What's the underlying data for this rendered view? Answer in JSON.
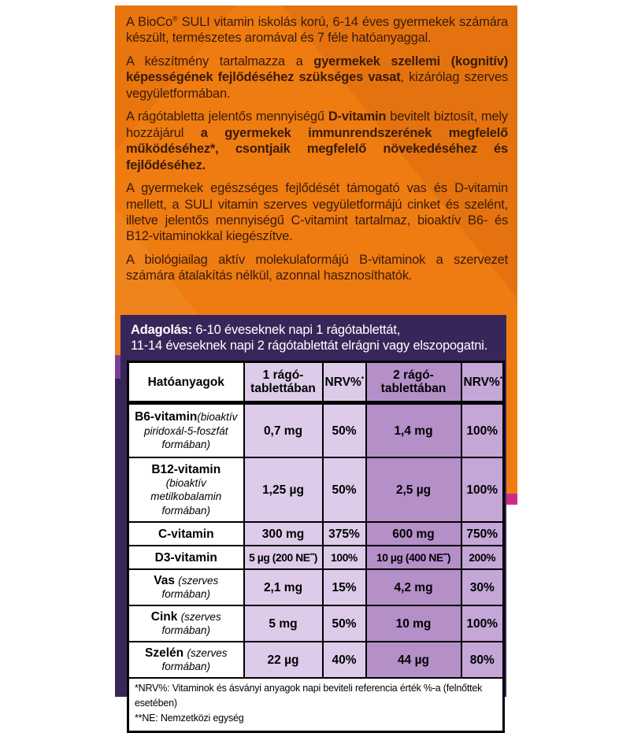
{
  "label": {
    "colors": {
      "orange": "#ef7c11",
      "panelPurple": "#38265a",
      "lilac": "#ddcbe9",
      "midPurple": "#b48fc8",
      "lightPurple": "#c4a6d7",
      "accentPurple": "#7b3f9a",
      "accentMagenta": "#cd2c86",
      "introText": "#3a1b07"
    },
    "intro": {
      "paragraphs": [
        {
          "segments": [
            {
              "text": "A BioCo^®^ SULI vitamin iskolás korú, 6-14 éves gyermekek számára készült, természetes aromával és 7 féle hatóanyaggal.",
              "bold": false
            }
          ]
        },
        {
          "segments": [
            {
              "text": "A készítmény tartalmazza a ",
              "bold": false
            },
            {
              "text": "gyermekek szellemi (kognitív) képességének fejlődéséhez szükséges vasat",
              "bold": true
            },
            {
              "text": ", kizárólag szerves vegyületformában.",
              "bold": false
            }
          ]
        },
        {
          "segments": [
            {
              "text": "A rágótabletta jelentős mennyiségű ",
              "bold": false
            },
            {
              "text": "D-vitamin",
              "bold": true
            },
            {
              "text": " bevitelt biztosít, mely hozzájárul ",
              "bold": false
            },
            {
              "text": "a gyermekek immunrendszerének megfelelő működéséhez*, csontjaik megfelelő növekedéséhez és fejlődéséhez.",
              "bold": true
            }
          ]
        },
        {
          "segments": [
            {
              "text": "A gyermekek egészséges fejlődését támogató vas és D-vitamin mellett, a SULI vitamin szerves vegyületformájú cinket és szelént, illetve jelentős mennyiségű C-vitamint tartalmaz, bioaktív B6- és B12-vitaminokkal kiegészítve.",
              "bold": false
            }
          ]
        },
        {
          "segments": [
            {
              "text": "A biológiailag aktív molekulaformájú B-vitaminok a szervezet számára átalakítás nélkül, azonnal hasznosíthatók.",
              "bold": false
            }
          ]
        }
      ]
    },
    "dosage": {
      "lines": [
        {
          "segments": [
            {
              "text": "Adagolás:",
              "bold": true
            },
            {
              "text": " 6-10 éveseknek napi 1 rágótablettát,",
              "bold": false
            }
          ]
        },
        {
          "segments": [
            {
              "text": "11-14 éveseknek napi 2 rágótablettát elrágni vagy elszopogatni.",
              "bold": false
            }
          ]
        }
      ]
    },
    "table": {
      "headers": [
        "Hatóanyagok",
        "1 rágó-\ntablettában",
        "NRV%^*^",
        "2 rágó-\ntablettában",
        "NRV%^*^"
      ],
      "rows": [
        {
          "name": "B6-vitamin",
          "note": "(bioaktív piridoxál-5-foszfát formában)",
          "sep": "none",
          "values": [
            "0,7 mg",
            "50%",
            "1,4 mg",
            "100%"
          ]
        },
        {
          "name": "B12-vitamin",
          "note": "(bioaktív metilkobalamin formában)",
          "sep": "break",
          "values": [
            "1,25 µg",
            "50%",
            "2,5 µg",
            "100%"
          ]
        },
        {
          "name": "C-vitamin",
          "note": "",
          "sep": "none",
          "values": [
            "300 mg",
            "375%",
            "600 mg",
            "750%"
          ]
        },
        {
          "name": "D3-vitamin",
          "note": "",
          "sep": "none",
          "values": [
            "5 µg (200 NE^**^)",
            "100%",
            "10 µg (400 NE^**^)",
            "200%"
          ]
        },
        {
          "name": "Vas",
          "note": "(szerves formában)",
          "sep": "space",
          "values": [
            "2,1 mg",
            "15%",
            "4,2 mg",
            "30%"
          ]
        },
        {
          "name": "Cink",
          "note": "(szerves formában)",
          "sep": "space",
          "values": [
            "5 mg",
            "50%",
            "10 mg",
            "100%"
          ]
        },
        {
          "name": "Szelén",
          "note": "(szerves formában)",
          "sep": "space",
          "values": [
            "22 µg",
            "40%",
            "44 µg",
            "80%"
          ]
        }
      ],
      "footnotes": [
        "*NRV%: Vitaminok és ásványi anyagok napi beviteli referencia érték %-a (felnőttek esetében)",
        "**NE: Nemzetközi egység"
      ]
    }
  }
}
